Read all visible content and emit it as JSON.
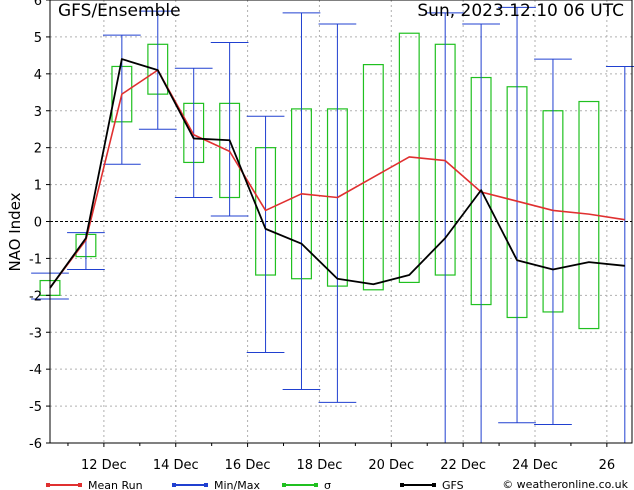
{
  "chart_data": {
    "type": "line",
    "title": "GFS/Ensemble",
    "run_label": "Sun, 2023.12.10 06 UTC",
    "ylabel": "NAO Index",
    "ylim": [
      -6,
      6
    ],
    "yticks": [
      "-6",
      "-5",
      "-4",
      "-3",
      "-2",
      "-1",
      "0",
      "1",
      "2",
      "3",
      "4",
      "5",
      "6"
    ],
    "xlim": [
      10.5,
      26.7
    ],
    "xticks": [
      {
        "x": 12,
        "label": "12 Dec"
      },
      {
        "x": 14,
        "label": "14 Dec"
      },
      {
        "x": 16,
        "label": "16 Dec"
      },
      {
        "x": 18,
        "label": "18 Dec"
      },
      {
        "x": 20,
        "label": "20 Dec"
      },
      {
        "x": 22,
        "label": "22 Dec"
      },
      {
        "x": 24,
        "label": "24 Dec"
      },
      {
        "x": 26,
        "label": "26"
      }
    ],
    "grid": true,
    "colors": {
      "mean": "#e03030",
      "minmax": "#2040d0",
      "sigma": "#20c020",
      "gfs": "#000000",
      "grid": "#b0b0b0"
    },
    "x": [
      10.5,
      11.5,
      12.5,
      13.5,
      14.5,
      15.5,
      16.5,
      17.5,
      18.5,
      19.5,
      20.5,
      21.5,
      22.5,
      23.5,
      24.5,
      25.5,
      26.5
    ],
    "series": [
      {
        "name": "Mean Run",
        "values": [
          -1.8,
          -0.5,
          3.45,
          4.1,
          2.35,
          1.9,
          0.3,
          0.75,
          0.65,
          1.2,
          1.75,
          1.65,
          0.8,
          0.55,
          0.3,
          0.2,
          0.05
        ]
      },
      {
        "name": "GFS",
        "values": [
          -1.8,
          -0.45,
          4.4,
          4.1,
          2.25,
          2.2,
          -0.2,
          -0.6,
          -1.55,
          -1.7,
          -1.45,
          -0.45,
          0.85,
          -1.05,
          -1.3,
          -1.1,
          -1.2
        ]
      }
    ],
    "minmax": [
      {
        "x": 10.5,
        "min": -2.1,
        "max": -1.4
      },
      {
        "x": 11.5,
        "min": -1.3,
        "max": -0.3
      },
      {
        "x": 12.5,
        "min": 1.55,
        "max": 5.05
      },
      {
        "x": 13.5,
        "min": 2.5,
        "max": 5.7
      },
      {
        "x": 14.5,
        "min": 0.65,
        "max": 4.15
      },
      {
        "x": 15.5,
        "min": 0.15,
        "max": 4.85
      },
      {
        "x": 16.5,
        "min": -3.55,
        "max": 2.85
      },
      {
        "x": 17.5,
        "min": -4.55,
        "max": 5.65
      },
      {
        "x": 18.5,
        "min": -4.9,
        "max": 5.35
      },
      {
        "x": 21.5,
        "min": -6,
        "max": 5.65
      },
      {
        "x": 22.5,
        "min": -6,
        "max": 5.35
      },
      {
        "x": 23.5,
        "min": -5.45,
        "max": 5.8
      },
      {
        "x": 24.5,
        "min": -5.5,
        "max": 4.4
      },
      {
        "x": 26.5,
        "min": -6,
        "max": 4.2
      }
    ],
    "sigma": [
      {
        "x": 10.5,
        "low": -2.0,
        "high": -1.6
      },
      {
        "x": 11.5,
        "low": -0.95,
        "high": -0.35
      },
      {
        "x": 12.5,
        "low": 2.7,
        "high": 4.2
      },
      {
        "x": 13.5,
        "low": 3.45,
        "high": 4.8
      },
      {
        "x": 14.5,
        "low": 1.6,
        "high": 3.2
      },
      {
        "x": 15.5,
        "low": 0.65,
        "high": 3.2
      },
      {
        "x": 16.5,
        "low": -1.45,
        "high": 2.0
      },
      {
        "x": 17.5,
        "low": -1.55,
        "high": 3.05
      },
      {
        "x": 18.5,
        "low": -1.75,
        "high": 3.05
      },
      {
        "x": 19.5,
        "low": -1.85,
        "high": 4.25
      },
      {
        "x": 20.5,
        "low": -1.65,
        "high": 5.1
      },
      {
        "x": 21.5,
        "low": -1.45,
        "high": 4.8
      },
      {
        "x": 22.5,
        "low": -2.25,
        "high": 3.9
      },
      {
        "x": 23.5,
        "low": -2.6,
        "high": 3.65
      },
      {
        "x": 24.5,
        "low": -2.45,
        "high": 3.0
      },
      {
        "x": 25.5,
        "low": -2.9,
        "high": 3.25
      }
    ],
    "legend": [
      {
        "key": "mean",
        "label": "Mean Run",
        "style": "line"
      },
      {
        "key": "minmax",
        "label": "Min/Max",
        "style": "line"
      },
      {
        "key": "sigma",
        "label": "σ",
        "style": "line"
      },
      {
        "key": "gfs",
        "label": "GFS",
        "style": "line"
      }
    ],
    "credit": "© weatheronline.co.uk"
  }
}
